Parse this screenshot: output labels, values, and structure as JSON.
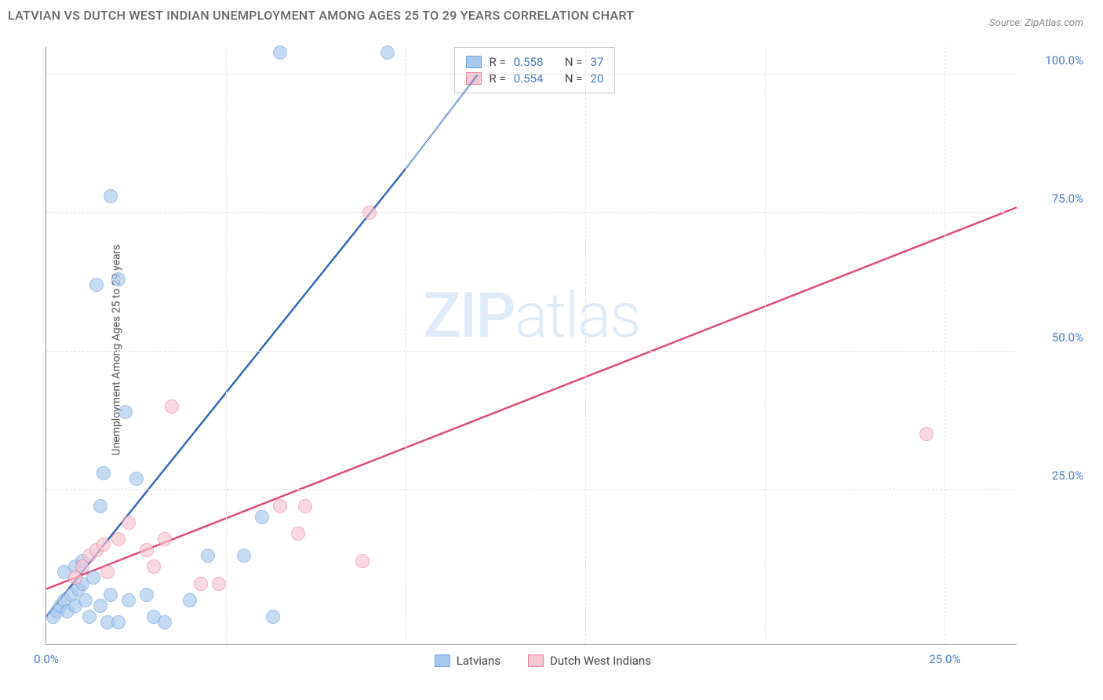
{
  "title": "LATVIAN VS DUTCH WEST INDIAN UNEMPLOYMENT AMONG AGES 25 TO 29 YEARS CORRELATION CHART",
  "source": "Source: ZipAtlas.com",
  "y_axis_label": "Unemployment Among Ages 25 to 29 years",
  "watermark_bold": "ZIP",
  "watermark_light": "atlas",
  "chart": {
    "type": "scatter",
    "xlim": [
      0,
      27
    ],
    "ylim": [
      -3,
      105
    ],
    "x_ticks": [
      {
        "pos": 0,
        "label": "0.0%"
      },
      {
        "pos": 25,
        "label": "25.0%"
      }
    ],
    "y_ticks": [
      {
        "pos": 25,
        "label": "25.0%"
      },
      {
        "pos": 50,
        "label": "50.0%"
      },
      {
        "pos": 75,
        "label": "75.0%"
      },
      {
        "pos": 100,
        "label": "100.0%"
      }
    ],
    "x_gridlines": [
      5,
      10,
      15,
      20,
      25
    ],
    "y_gridlines": [
      25,
      50,
      75,
      100
    ],
    "background_color": "#ffffff",
    "grid_color": "#e0e0e0",
    "series": [
      {
        "name": "Latvians",
        "color_fill": "#a9c8ec",
        "color_stroke": "#6fa3d8",
        "r_value": "0.558",
        "n_value": "37",
        "regression": {
          "x1": 0,
          "y1": 2,
          "x2": 10,
          "y2": 83,
          "x2_dash": 12,
          "y2_dash": 100,
          "stroke": "#3969b9",
          "stroke_width": 2.5
        },
        "points": [
          {
            "x": 0.2,
            "y": 2
          },
          {
            "x": 0.3,
            "y": 3
          },
          {
            "x": 0.4,
            "y": 4
          },
          {
            "x": 0.5,
            "y": 5
          },
          {
            "x": 0.6,
            "y": 3
          },
          {
            "x": 0.7,
            "y": 6
          },
          {
            "x": 0.8,
            "y": 4
          },
          {
            "x": 0.9,
            "y": 7
          },
          {
            "x": 1.0,
            "y": 8
          },
          {
            "x": 1.1,
            "y": 5
          },
          {
            "x": 1.2,
            "y": 2
          },
          {
            "x": 1.3,
            "y": 9
          },
          {
            "x": 1.5,
            "y": 4
          },
          {
            "x": 1.5,
            "y": 22
          },
          {
            "x": 1.6,
            "y": 28
          },
          {
            "x": 1.7,
            "y": 1
          },
          {
            "x": 1.8,
            "y": 6
          },
          {
            "x": 2.0,
            "y": 1
          },
          {
            "x": 2.2,
            "y": 39
          },
          {
            "x": 1.4,
            "y": 62
          },
          {
            "x": 2.0,
            "y": 63
          },
          {
            "x": 2.5,
            "y": 27
          },
          {
            "x": 2.8,
            "y": 6
          },
          {
            "x": 3.0,
            "y": 2
          },
          {
            "x": 3.3,
            "y": 1
          },
          {
            "x": 4.0,
            "y": 5
          },
          {
            "x": 4.5,
            "y": 13
          },
          {
            "x": 5.5,
            "y": 13
          },
          {
            "x": 6.0,
            "y": 20
          },
          {
            "x": 6.3,
            "y": 2
          },
          {
            "x": 6.5,
            "y": 104
          },
          {
            "x": 9.5,
            "y": 104
          },
          {
            "x": 1.8,
            "y": 78
          },
          {
            "x": 0.5,
            "y": 10
          },
          {
            "x": 0.8,
            "y": 11
          },
          {
            "x": 1.0,
            "y": 12
          },
          {
            "x": 2.3,
            "y": 5
          }
        ]
      },
      {
        "name": "Dutch West Indians",
        "color_fill": "#f5c6d3",
        "color_stroke": "#e8859f",
        "r_value": "0.554",
        "n_value": "20",
        "regression": {
          "x1": 0,
          "y1": 7,
          "x2": 27,
          "y2": 76,
          "stroke": "#e04d77",
          "stroke_width": 2.5
        },
        "points": [
          {
            "x": 0.8,
            "y": 9
          },
          {
            "x": 1.0,
            "y": 11
          },
          {
            "x": 1.2,
            "y": 13
          },
          {
            "x": 1.4,
            "y": 14
          },
          {
            "x": 1.6,
            "y": 15
          },
          {
            "x": 1.7,
            "y": 10
          },
          {
            "x": 2.0,
            "y": 16
          },
          {
            "x": 2.3,
            "y": 19
          },
          {
            "x": 2.8,
            "y": 14
          },
          {
            "x": 3.0,
            "y": 11
          },
          {
            "x": 3.3,
            "y": 16
          },
          {
            "x": 3.5,
            "y": 40
          },
          {
            "x": 4.3,
            "y": 8
          },
          {
            "x": 4.8,
            "y": 8
          },
          {
            "x": 6.5,
            "y": 22
          },
          {
            "x": 7.0,
            "y": 17
          },
          {
            "x": 7.2,
            "y": 22
          },
          {
            "x": 8.8,
            "y": 12
          },
          {
            "x": 9.0,
            "y": 75
          },
          {
            "x": 24.5,
            "y": 35
          }
        ]
      }
    ]
  },
  "stats_box": {
    "r_label": "R =",
    "n_label": "N ="
  },
  "legend": {
    "series1": "Latvians",
    "series2": "Dutch West Indians"
  }
}
